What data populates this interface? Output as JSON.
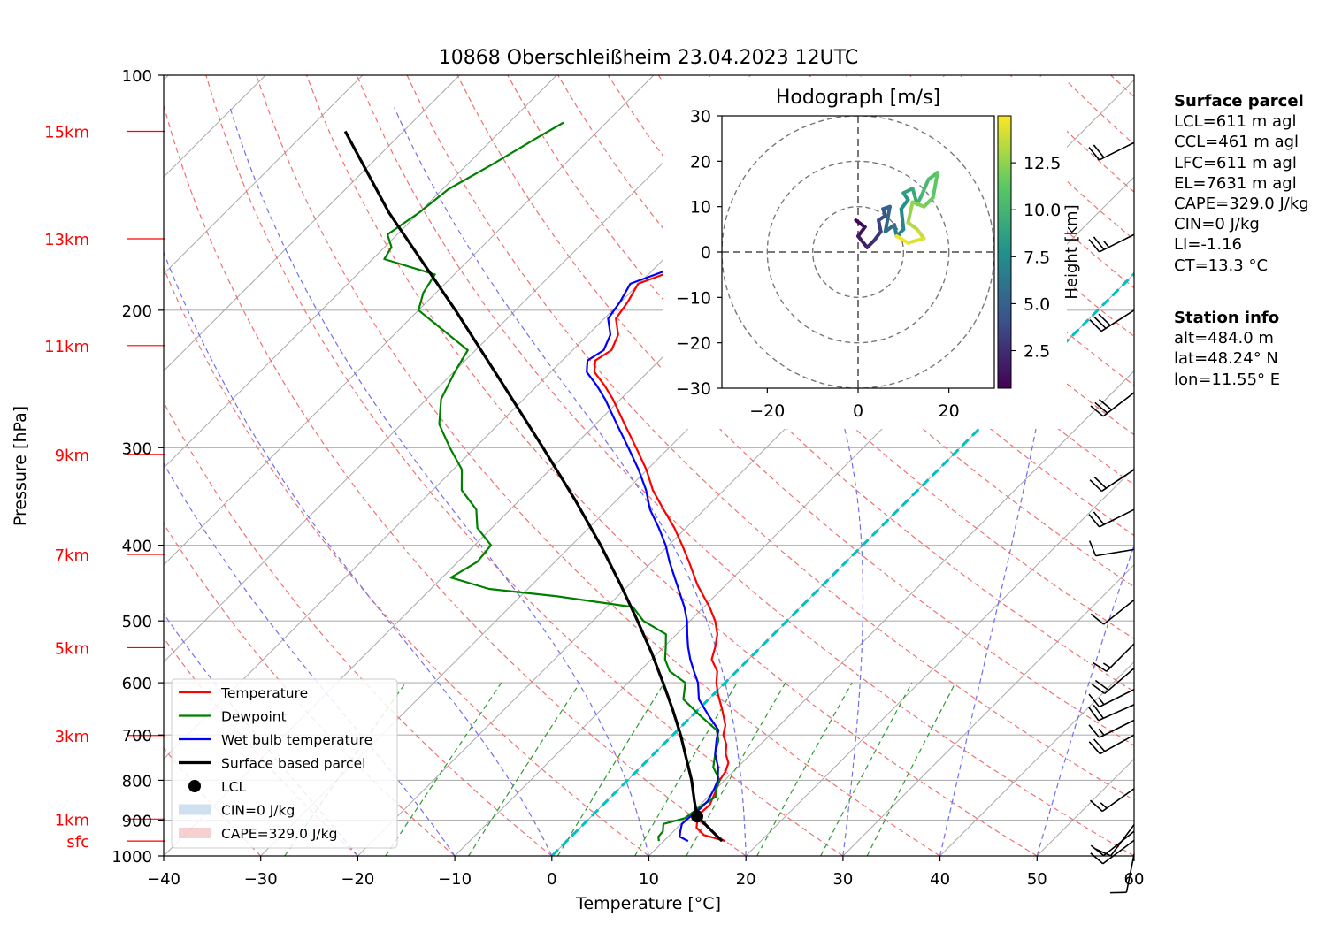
{
  "chart_data": {
    "type": "skew-t log-p sounding diagram",
    "title": "10868 Oberschleißheim 23.04.2023 12UTC",
    "xlabel": "Temperature [°C]",
    "ylabel": "Pressure [hPa]",
    "xlim": [
      -40,
      60
    ],
    "ylim": [
      1000,
      100
    ],
    "x_ticks": [
      -40,
      -30,
      -20,
      -10,
      0,
      10,
      20,
      30,
      40,
      50,
      60
    ],
    "x_tick_labels": [
      "−40",
      "−30",
      "−20",
      "−10",
      "0",
      "10",
      "20",
      "30",
      "40",
      "50",
      "60"
    ],
    "y_ticks": [
      1000,
      900,
      800,
      700,
      600,
      500,
      400,
      300,
      200,
      100
    ],
    "y_tick_labels": [
      "1000",
      "900",
      "800",
      "700",
      "600",
      "500",
      "400",
      "300",
      "200",
      "100"
    ],
    "y_scale": "log",
    "skew": "isotherms inclined 45°",
    "grid": true,
    "height_markers": [
      {
        "label": "sfc",
        "pressure": 957
      },
      {
        "label": "1km",
        "pressure": 897
      },
      {
        "label": "3km",
        "pressure": 701
      },
      {
        "label": "5km",
        "pressure": 541
      },
      {
        "label": "7km",
        "pressure": 411
      },
      {
        "label": "9km",
        "pressure": 306
      },
      {
        "label": "11km",
        "pressure": 222
      },
      {
        "label": "13km",
        "pressure": 162
      },
      {
        "label": "15km",
        "pressure": 118
      }
    ],
    "series": [
      {
        "name": "Temperature",
        "color": "#ff0000",
        "points": [
          [
            957,
            16.3
          ],
          [
            940,
            13.5
          ],
          [
            920,
            12.0
          ],
          [
            900,
            11.3
          ],
          [
            880,
            10.9
          ],
          [
            860,
            11.0
          ],
          [
            830,
            10.3
          ],
          [
            800,
            9.5
          ],
          [
            780,
            9.2
          ],
          [
            760,
            8.6
          ],
          [
            740,
            7.4
          ],
          [
            720,
            6.5
          ],
          [
            700,
            5.2
          ],
          [
            680,
            4.4
          ],
          [
            650,
            2.5
          ],
          [
            620,
            0.4
          ],
          [
            600,
            -0.9
          ],
          [
            580,
            -2.0
          ],
          [
            560,
            -3.8
          ],
          [
            540,
            -4.7
          ],
          [
            520,
            -5.8
          ],
          [
            500,
            -7.4
          ],
          [
            480,
            -9.4
          ],
          [
            450,
            -12.9
          ],
          [
            420,
            -16.2
          ],
          [
            400,
            -18.6
          ],
          [
            380,
            -21.2
          ],
          [
            360,
            -24.2
          ],
          [
            340,
            -27.3
          ],
          [
            320,
            -30.1
          ],
          [
            300,
            -33.4
          ],
          [
            280,
            -37.0
          ],
          [
            260,
            -40.8
          ],
          [
            250,
            -43.0
          ],
          [
            240,
            -45.5
          ],
          [
            232,
            -46.6
          ],
          [
            225,
            -46.0
          ],
          [
            215,
            -46.9
          ],
          [
            205,
            -48.8
          ],
          [
            195,
            -49.3
          ],
          [
            185,
            -50.1
          ],
          [
            178,
            -47.8
          ],
          [
            172,
            -45.9
          ],
          [
            165,
            -44.3
          ],
          [
            155,
            -44.8
          ],
          [
            147,
            -43.7
          ],
          [
            138,
            -44.4
          ],
          [
            130,
            -43.8
          ],
          [
            123,
            -44.9
          ],
          [
            118,
            -46.9
          ],
          [
            113,
            -47.3
          ]
        ]
      },
      {
        "name": "Dewpoint",
        "color": "#008000",
        "points": [
          [
            957,
            9.5
          ],
          [
            945,
            9.0
          ],
          [
            930,
            8.9
          ],
          [
            910,
            8.2
          ],
          [
            895,
            9.8
          ],
          [
            880,
            10.0
          ],
          [
            860,
            10.3
          ],
          [
            840,
            10.8
          ],
          [
            820,
            10.0
          ],
          [
            800,
            9.5
          ],
          [
            770,
            7.5
          ],
          [
            740,
            6.3
          ],
          [
            710,
            5.2
          ],
          [
            690,
            4.0
          ],
          [
            660,
            0.7
          ],
          [
            630,
            -2.6
          ],
          [
            600,
            -4.1
          ],
          [
            580,
            -6.9
          ],
          [
            560,
            -8.6
          ],
          [
            540,
            -9.8
          ],
          [
            520,
            -11.1
          ],
          [
            500,
            -14.8
          ],
          [
            480,
            -17.3
          ],
          [
            465,
            -26.2
          ],
          [
            455,
            -34.0
          ],
          [
            440,
            -39.1
          ],
          [
            420,
            -38.0
          ],
          [
            400,
            -38.3
          ],
          [
            380,
            -41.5
          ],
          [
            360,
            -43.5
          ],
          [
            340,
            -47.0
          ],
          [
            320,
            -49.1
          ],
          [
            300,
            -52.6
          ],
          [
            280,
            -56.1
          ],
          [
            260,
            -58.5
          ],
          [
            240,
            -59.9
          ],
          [
            225,
            -60.8
          ],
          [
            210,
            -66.2
          ],
          [
            200,
            -70.0
          ],
          [
            190,
            -71.3
          ],
          [
            180,
            -72.0
          ],
          [
            172,
            -78.8
          ],
          [
            166,
            -79.3
          ],
          [
            160,
            -81.0
          ],
          [
            150,
            -80.0
          ],
          [
            140,
            -79.4
          ],
          [
            130,
            -77.4
          ],
          [
            120,
            -75.5
          ],
          [
            115,
            -74.4
          ]
        ]
      },
      {
        "name": "Wet bulb temperature",
        "color": "#0000ff",
        "points": [
          [
            957,
            12.5
          ],
          [
            945,
            11.2
          ],
          [
            930,
            10.7
          ],
          [
            910,
            10.1
          ],
          [
            890,
            10.2
          ],
          [
            870,
            10.4
          ],
          [
            850,
            10.4
          ],
          [
            820,
            9.8
          ],
          [
            800,
            9.3
          ],
          [
            770,
            8.0
          ],
          [
            740,
            6.3
          ],
          [
            710,
            5.0
          ],
          [
            690,
            4.2
          ],
          [
            660,
            1.6
          ],
          [
            630,
            -1.0
          ],
          [
            600,
            -2.8
          ],
          [
            580,
            -4.4
          ],
          [
            560,
            -6.0
          ],
          [
            540,
            -7.5
          ],
          [
            520,
            -8.9
          ],
          [
            500,
            -10.3
          ],
          [
            480,
            -12.0
          ],
          [
            450,
            -15.0
          ],
          [
            420,
            -18.2
          ],
          [
            400,
            -20.3
          ],
          [
            380,
            -22.8
          ],
          [
            360,
            -25.6
          ],
          [
            340,
            -28.0
          ],
          [
            320,
            -30.9
          ],
          [
            300,
            -34.2
          ],
          [
            280,
            -37.8
          ],
          [
            260,
            -41.6
          ],
          [
            250,
            -43.8
          ],
          [
            240,
            -46.3
          ],
          [
            232,
            -47.4
          ],
          [
            225,
            -46.8
          ],
          [
            215,
            -47.7
          ],
          [
            205,
            -49.6
          ],
          [
            195,
            -50.1
          ],
          [
            185,
            -50.9
          ],
          [
            178,
            -48.6
          ],
          [
            172,
            -46.7
          ],
          [
            165,
            -45.1
          ],
          [
            155,
            -45.6
          ],
          [
            147,
            -44.5
          ],
          [
            138,
            -45.2
          ],
          [
            130,
            -44.6
          ],
          [
            123,
            -45.7
          ],
          [
            118,
            -47.7
          ],
          [
            113,
            -48.1
          ]
        ]
      },
      {
        "name": "Surface based parcel",
        "color": "#000000",
        "points": [
          [
            957,
            16.0
          ],
          [
            890,
            10.9
          ],
          [
            850,
            9.0
          ],
          [
            800,
            6.6
          ],
          [
            750,
            3.8
          ],
          [
            700,
            0.8
          ],
          [
            650,
            -2.6
          ],
          [
            600,
            -6.4
          ],
          [
            550,
            -10.6
          ],
          [
            500,
            -15.4
          ],
          [
            450,
            -20.8
          ],
          [
            400,
            -27.0
          ],
          [
            350,
            -34.3
          ],
          [
            300,
            -43.0
          ],
          [
            250,
            -53.4
          ],
          [
            200,
            -66.2
          ],
          [
            150,
            -83.1
          ],
          [
            118,
            -96.0
          ]
        ]
      }
    ],
    "lcl": {
      "name": "LCL",
      "pressure": 890,
      "temperature": 10.9
    },
    "legend": {
      "placement": "lower-left",
      "entries": [
        "Temperature",
        "Dewpoint",
        "Wet bulb temperature",
        "Surface based parcel",
        "LCL",
        "CIN=0 J/kg",
        "CAPE=329.0 J/kg"
      ]
    },
    "freezing_level": {
      "name": "0 °C isotherm",
      "color": "#00c0c0"
    },
    "wind_barbs": [
      {
        "pressure": 995,
        "u": 1,
        "v": 5
      },
      {
        "pressure": 955,
        "u": 4,
        "v": 3
      },
      {
        "pressure": 930,
        "u": 5,
        "v": 4
      },
      {
        "pressure": 912,
        "u": 3,
        "v": 4
      },
      {
        "pressure": 820,
        "u": 7,
        "v": 5
      },
      {
        "pressure": 700,
        "u": 9,
        "v": 5
      },
      {
        "pressure": 670,
        "u": 8,
        "v": 4
      },
      {
        "pressure": 640,
        "u": 9,
        "v": 4
      },
      {
        "pressure": 612,
        "u": 8,
        "v": 4
      },
      {
        "pressure": 575,
        "u": 7,
        "v": 6
      },
      {
        "pressure": 535,
        "u": 5,
        "v": 5
      },
      {
        "pressure": 470,
        "u": 5,
        "v": 4
      },
      {
        "pressure": 405,
        "u": 6,
        "v": 1
      },
      {
        "pressure": 360,
        "u": 10,
        "v": 5
      },
      {
        "pressure": 320,
        "u": 9,
        "v": 6
      },
      {
        "pressure": 255,
        "u": 13,
        "v": 10
      },
      {
        "pressure": 200,
        "u": 14,
        "v": 9
      },
      {
        "pressure": 160,
        "u": 12,
        "v": 6
      },
      {
        "pressure": 122,
        "u": 10,
        "v": 5
      }
    ],
    "hodograph": {
      "title": "Hodograph [m/s]",
      "xlim": [
        -30,
        30
      ],
      "ylim": [
        -30,
        30
      ],
      "x_ticks": [
        -20,
        0,
        20
      ],
      "x_tick_labels": [
        "−20",
        "0",
        "20"
      ],
      "y_ticks": [
        -30,
        -20,
        -10,
        0,
        10,
        20,
        30
      ],
      "y_tick_labels": [
        "−30",
        "−20",
        "−10",
        "0",
        "10",
        "20",
        "30"
      ],
      "rings": [
        10,
        20,
        30
      ],
      "colorbar_label": "Height [km]",
      "colorbar_ticks": [
        2.5,
        5.0,
        7.5,
        10.0,
        12.5
      ],
      "colorbar_tick_labels": [
        "2.5",
        "5.0",
        "7.5",
        "10.0",
        "12.5"
      ],
      "colorbar_range": [
        0.5,
        15.0
      ],
      "colormap": "viridis",
      "points": [
        [
          -0.5,
          7.0,
          0.5
        ],
        [
          1.5,
          5.5,
          1.0
        ],
        [
          0.0,
          3.5,
          1.5
        ],
        [
          2.0,
          1.0,
          2.0
        ],
        [
          3.5,
          2.5,
          2.5
        ],
        [
          5.0,
          4.5,
          3.0
        ],
        [
          4.5,
          7.0,
          3.5
        ],
        [
          6.0,
          8.0,
          4.0
        ],
        [
          5.5,
          9.5,
          4.5
        ],
        [
          7.0,
          10.0,
          5.0
        ],
        [
          6.0,
          4.5,
          5.5
        ],
        [
          8.0,
          6.0,
          6.0
        ],
        [
          8.5,
          3.5,
          6.5
        ],
        [
          10.0,
          5.0,
          7.0
        ],
        [
          9.5,
          9.5,
          7.5
        ],
        [
          11.0,
          11.5,
          8.0
        ],
        [
          10.0,
          13.0,
          8.5
        ],
        [
          12.0,
          14.0,
          9.0
        ],
        [
          13.0,
          10.5,
          9.5
        ],
        [
          14.0,
          12.5,
          10.0
        ],
        [
          15.5,
          16.0,
          10.5
        ],
        [
          17.5,
          17.5,
          11.0
        ],
        [
          16.5,
          12.0,
          11.5
        ],
        [
          14.5,
          10.0,
          12.0
        ],
        [
          12.0,
          11.0,
          12.5
        ],
        [
          11.0,
          6.5,
          13.0
        ],
        [
          13.0,
          5.0,
          13.5
        ],
        [
          14.5,
          3.0,
          14.0
        ],
        [
          11.0,
          2.0,
          14.5
        ],
        [
          8.5,
          3.5,
          15.0
        ]
      ]
    }
  },
  "surface_panel": {
    "title": "Surface parcel",
    "lines": [
      "LCL=611 m agl",
      "CCL=461 m agl",
      "LFC=611 m agl",
      "EL=7631 m agl",
      "CAPE=329.0 J/kg",
      "CIN=0 J/kg",
      "LI=-1.16",
      "CT=13.3 °C"
    ]
  },
  "station_panel": {
    "title": "Station info",
    "lines": [
      "alt=484.0 m",
      "lat=48.24° N",
      "lon=11.55° E"
    ]
  }
}
